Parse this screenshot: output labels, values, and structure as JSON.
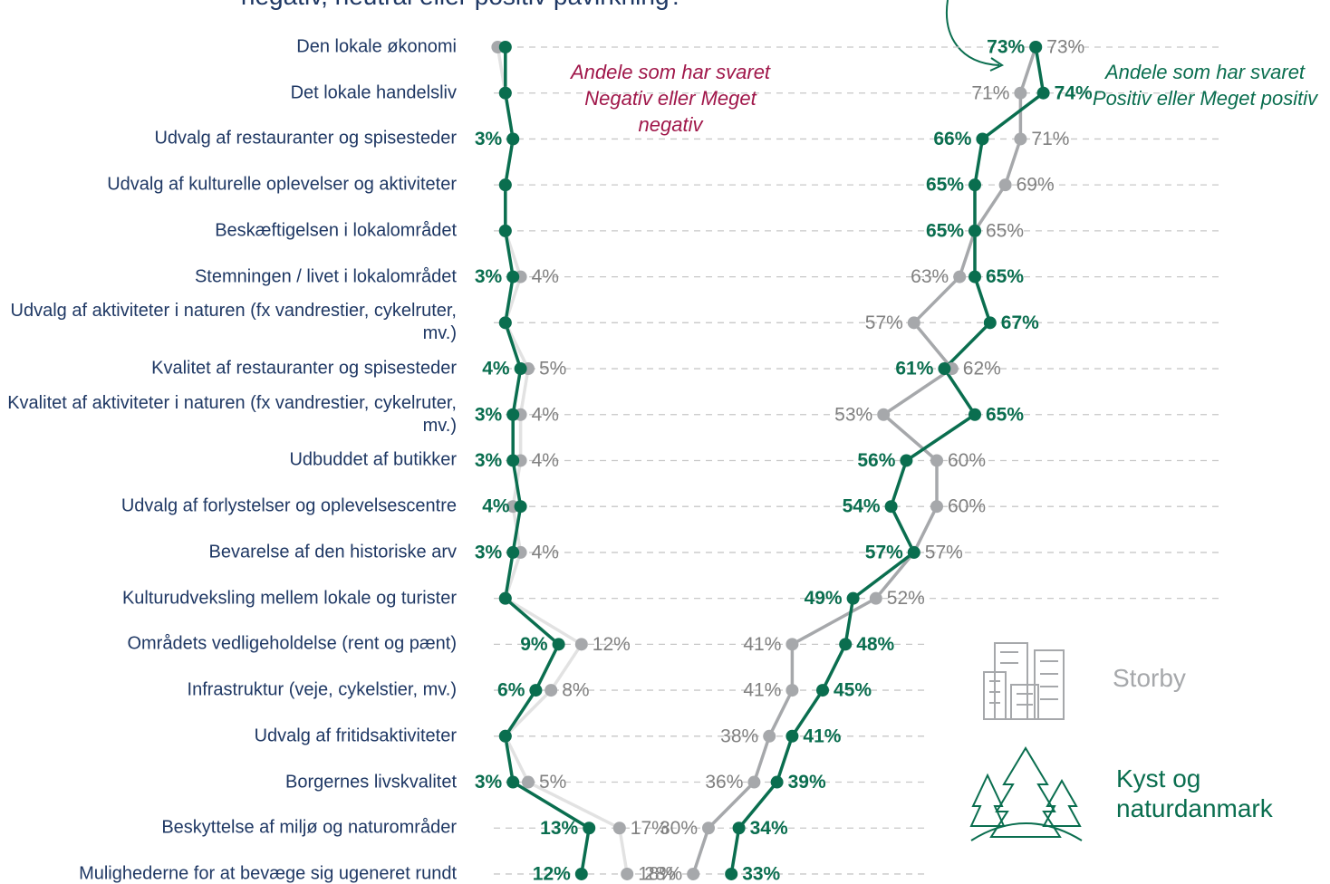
{
  "chart_data": {
    "type": "dotline",
    "title": "negativ, neutral eller positiv påvirkning?",
    "categories": [
      "Den lokale økonomi",
      "Det lokale handelsliv",
      "Udvalg af restauranter og spisesteder",
      "Udvalg af kulturelle oplevelser og aktiviteter",
      "Beskæftigelsen i lokalområdet",
      "Stemningen / livet i lokalområdet",
      "Udvalg af aktiviteter i naturen (fx vandrestier, cykelruter, mv.)",
      "Kvalitet af restauranter og spisesteder",
      "Kvalitet af aktiviteter i naturen (fx vandrestier, cykelruter, mv.)",
      "Udbuddet af butikker",
      "Udvalg af forlystelser og oplevelsescentre",
      "Bevarelse af den historiske arv",
      "Kulturudveksling mellem lokale og turister",
      "Områdets vedligeholdelse (rent og pænt)",
      "Infrastruktur (veje, cykelstier, mv.)",
      "Udvalg af fritidsaktiviteter",
      "Borgernes livskvalitet",
      "Beskyttelse af miljø og naturområder",
      "Mulighederne for at bevæge sig ugeneret rundt"
    ],
    "negative_annotation": "Andele som har svaret Negativ eller Meget negativ",
    "positive_annotation": "Andele som har svaret Positiv eller Meget positiv",
    "negative_xlim": [
      0,
      20
    ],
    "positive_xlim": [
      25,
      75
    ],
    "series": [
      {
        "name": "Storby",
        "color": "#a6a8ab",
        "negative": [
          1,
          2,
          3,
          2,
          2,
          4,
          2,
          5,
          4,
          4,
          3,
          4,
          2,
          12,
          8,
          2,
          5,
          17,
          18
        ],
        "negative_labels": [
          null,
          null,
          null,
          null,
          null,
          "4%",
          null,
          "5%",
          "4%",
          "4%",
          null,
          "4%",
          null,
          "12%",
          "8%",
          null,
          "5%",
          "17%",
          "18%"
        ],
        "positive": [
          73,
          71,
          71,
          69,
          65,
          63,
          57,
          62,
          53,
          60,
          60,
          57,
          52,
          41,
          41,
          38,
          36,
          30,
          28
        ],
        "positive_labels": [
          "73%",
          "71%",
          "71%",
          "69%",
          "65%",
          "63%",
          "57%",
          "62%",
          "53%",
          "60%",
          "60%",
          "57%",
          "52%",
          "41%",
          "41%",
          "38%",
          "36%",
          "30%",
          "28%"
        ]
      },
      {
        "name": "Kyst og naturdanmark",
        "color": "#0a6e4f",
        "negative": [
          2,
          2,
          3,
          2,
          2,
          3,
          2,
          4,
          3,
          3,
          4,
          3,
          2,
          9,
          6,
          2,
          3,
          13,
          12
        ],
        "negative_labels": [
          null,
          null,
          "3%",
          null,
          null,
          "3%",
          null,
          "4%",
          "3%",
          "3%",
          "4%",
          "3%",
          null,
          "9%",
          "6%",
          null,
          "3%",
          "13%",
          "12%"
        ],
        "positive": [
          73,
          74,
          66,
          65,
          65,
          65,
          67,
          61,
          65,
          56,
          54,
          57,
          49,
          48,
          45,
          41,
          39,
          34,
          33
        ],
        "positive_labels": [
          "73%",
          "74%",
          "66%",
          "65%",
          "65%",
          "65%",
          "67%",
          "61%",
          "65%",
          "56%",
          "54%",
          "57%",
          "49%",
          "48%",
          "45%",
          "41%",
          "39%",
          "34%",
          "33%"
        ]
      }
    ]
  }
}
